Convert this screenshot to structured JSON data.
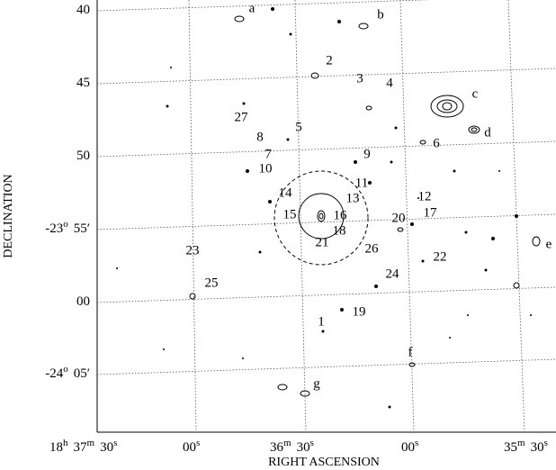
{
  "axes": {
    "x_label": "RIGHT ASCENSION",
    "y_label": "DECLINATION",
    "x_ticks": [
      [
        "18",
        "h",
        "37",
        "m",
        "30",
        "s"
      ],
      [
        "00",
        "s"
      ],
      [
        "36",
        "m",
        "30",
        "s"
      ],
      [
        "00",
        "s"
      ],
      [
        "35",
        "m",
        "30",
        "s"
      ]
    ],
    "y_ticks": [
      [
        "40"
      ],
      [
        "45"
      ],
      [
        "50"
      ],
      [
        "-23",
        "o",
        "55′"
      ],
      [
        "00"
      ],
      [
        "-24",
        "o",
        "05′"
      ]
    ]
  },
  "sources": [
    "a",
    "b",
    "2",
    "3",
    "4",
    "c",
    "27",
    "5",
    "d",
    "8",
    "6",
    "7",
    "9",
    "10",
    "11",
    "14",
    "13",
    "12",
    "15",
    "16",
    "17",
    "20",
    "18",
    "21",
    "e",
    "23",
    "26",
    "22",
    "24",
    "25",
    "19",
    "1",
    "f",
    "g"
  ]
}
